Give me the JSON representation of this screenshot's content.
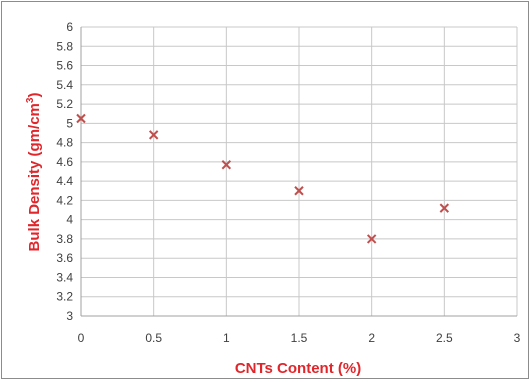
{
  "chart_data": {
    "type": "scatter",
    "title": "",
    "xlabel": "CNTs Content (%)",
    "ylabel_main": "Bulk Density (gm/cm",
    "ylabel_sup": "3",
    "ylabel_close": ")",
    "xlim": [
      0,
      3
    ],
    "ylim": [
      3,
      6
    ],
    "x_ticks": [
      "0",
      "0.5",
      "1",
      "1.5",
      "2",
      "2.5",
      "3"
    ],
    "y_ticks": [
      "3",
      "3.2",
      "3.4",
      "3.6",
      "3.8",
      "4",
      "4.2",
      "4.4",
      "4.6",
      "4.8",
      "5",
      "5.2",
      "5.4",
      "5.6",
      "5.8",
      "6"
    ],
    "grid": true,
    "legend": "none",
    "marker": "x",
    "colors": {
      "marker": "#c0504d",
      "axis_title": "#e0262b",
      "grid": "#c8c8c8",
      "tick_text": "#404040"
    },
    "series": [
      {
        "x": [
          0,
          0.5,
          1,
          1.5,
          2,
          2.5
        ],
        "y": [
          5.05,
          4.88,
          4.57,
          4.3,
          3.8,
          4.12
        ]
      }
    ]
  }
}
